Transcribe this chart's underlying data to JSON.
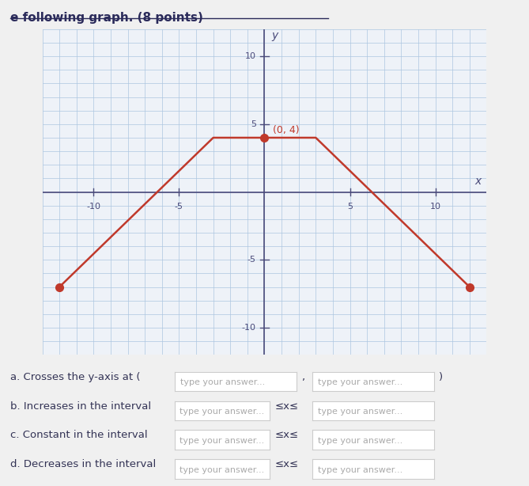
{
  "points": [
    [
      -12,
      -7
    ],
    [
      -3,
      4
    ],
    [
      3,
      4
    ],
    [
      12,
      -7
    ]
  ],
  "labeled_point": [
    0,
    4
  ],
  "labeled_point_text": "(0, 4)",
  "line_color": "#c0392b",
  "dot_color": "#c0392b",
  "bg_color": "#f0f0f0",
  "grid_bg_color": "#eef2f8",
  "grid_color": "#adc6e0",
  "axis_color": "#4a4a7a",
  "xlim": [
    -13,
    13
  ],
  "ylim": [
    -12,
    12
  ],
  "xticks": [
    -10,
    -5,
    5,
    10
  ],
  "yticks": [
    -10,
    -5,
    5,
    10
  ],
  "xlabel": "x",
  "ylabel": "y",
  "title": "e following graph. (8 points)",
  "title_color": "#2a2a5a",
  "title_fontsize": 11,
  "label_fontsize": 10,
  "tick_fontsize": 8,
  "annotation_color": "#c0392b",
  "question_text_a": "a. Crosses the y-axis at (  type your answer...  ,  type your answer...  )",
  "question_text_b": "b. Increases in the interval   type your answer...   ≤x≤  type your answer...",
  "question_text_c": "c. Constant in the interval   type your answer...   ≤x≤  type your answer...",
  "question_text_d": "d. Decreases in the interval   type your answer...   ≤x≤  type your answer..."
}
